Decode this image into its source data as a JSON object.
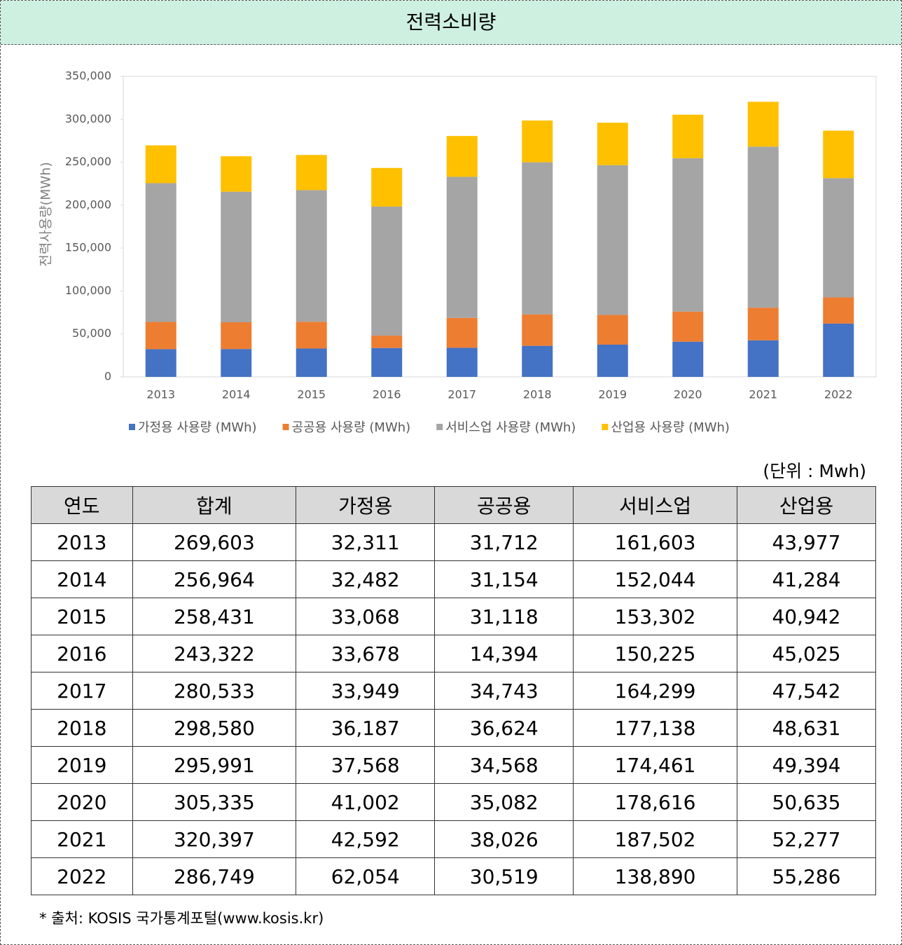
{
  "header": {
    "title": "전력소비량"
  },
  "chart_data": {
    "type": "bar",
    "stacked": true,
    "ylabel": "전력사용량(MWh)",
    "categories": [
      "2013",
      "2014",
      "2015",
      "2016",
      "2017",
      "2018",
      "2019",
      "2020",
      "2021",
      "2022"
    ],
    "series": [
      {
        "name": "가정용 사용량 (MWh)",
        "color": "#4472c4",
        "values": [
          32311,
          32482,
          33068,
          33678,
          33949,
          36187,
          37568,
          41002,
          42592,
          62054
        ]
      },
      {
        "name": "공공용 사용량 (MWh)",
        "color": "#ed7d31",
        "values": [
          31712,
          31154,
          31118,
          14394,
          34743,
          36624,
          34568,
          35082,
          38026,
          30519
        ]
      },
      {
        "name": "서비스업 사용량 (MWh)",
        "color": "#a5a5a5",
        "values": [
          161603,
          152044,
          153302,
          150225,
          164299,
          177138,
          174461,
          178616,
          187502,
          138890
        ]
      },
      {
        "name": "산업용 사용량 (MWh)",
        "color": "#ffc000",
        "values": [
          43977,
          41284,
          40942,
          45025,
          47542,
          48631,
          49394,
          50635,
          52277,
          55286
        ]
      }
    ],
    "ylim": [
      0,
      350000
    ],
    "yticks": [
      0,
      {
        "value": 50000,
        "label": "50,000"
      },
      {
        "value": 100000,
        "label": "100,000"
      },
      {
        "value": 150000,
        "label": "150,000"
      },
      {
        "value": 200000,
        "label": "200,000"
      },
      {
        "value": 250000,
        "label": "250,000"
      },
      {
        "value": 300000,
        "label": "300,000"
      },
      {
        "value": 350000,
        "label": "350,000"
      }
    ],
    "legend": "bottom"
  },
  "unit_note": "(단위 : Mwh)",
  "table": {
    "header": [
      "연도",
      "합계",
      "가정용",
      "공공용",
      "서비스업",
      "산업용"
    ],
    "rows": [
      [
        "2013",
        "269,603",
        "32,311",
        "31,712",
        "161,603",
        "43,977"
      ],
      [
        "2014",
        "256,964",
        "32,482",
        "31,154",
        "152,044",
        "41,284"
      ],
      [
        "2015",
        "258,431",
        "33,068",
        "31,118",
        "153,302",
        "40,942"
      ],
      [
        "2016",
        "243,322",
        "33,678",
        "14,394",
        "150,225",
        "45,025"
      ],
      [
        "2017",
        "280,533",
        "33,949",
        "34,743",
        "164,299",
        "47,542"
      ],
      [
        "2018",
        "298,580",
        "36,187",
        "36,624",
        "177,138",
        "48,631"
      ],
      [
        "2019",
        "295,991",
        "37,568",
        "34,568",
        "174,461",
        "49,394"
      ],
      [
        "2020",
        "305,335",
        "41,002",
        "35,082",
        "178,616",
        "50,635"
      ],
      [
        "2021",
        "320,397",
        "42,592",
        "38,026",
        "187,502",
        "52,277"
      ],
      [
        "2022",
        "286,749",
        "62,054",
        "30,519",
        "138,890",
        "55,286"
      ]
    ]
  },
  "source": "* 출처: KOSIS 국가통계포털(www.kosis.kr)"
}
